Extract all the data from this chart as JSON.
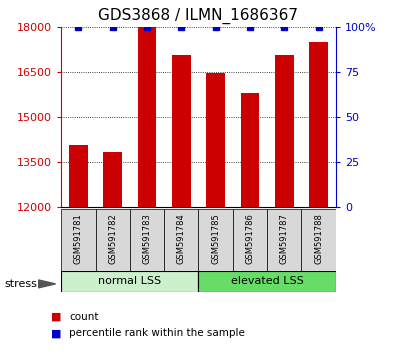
{
  "title": "GDS3868 / ILMN_1686367",
  "samples": [
    "GSM591781",
    "GSM591782",
    "GSM591783",
    "GSM591784",
    "GSM591785",
    "GSM591786",
    "GSM591787",
    "GSM591788"
  ],
  "counts": [
    14050,
    13820,
    18000,
    17050,
    16450,
    15800,
    17050,
    17500
  ],
  "percentile_ranks": [
    100,
    100,
    100,
    100,
    100,
    100,
    100,
    100
  ],
  "ylim_left": [
    12000,
    18000
  ],
  "ylim_right": [
    0,
    100
  ],
  "yticks_left": [
    12000,
    13500,
    15000,
    16500,
    18000
  ],
  "yticks_right": [
    0,
    25,
    50,
    75,
    100
  ],
  "bar_color": "#cc0000",
  "blue_color": "#0000cc",
  "bar_bottom": 12000,
  "group1_label": "normal LSS",
  "group2_label": "elevated LSS",
  "group1_indices": [
    0,
    1,
    2,
    3
  ],
  "group2_indices": [
    4,
    5,
    6,
    7
  ],
  "stress_label": "stress",
  "legend_count_label": "count",
  "legend_pct_label": "percentile rank within the sample",
  "bg_color_light": "#ccf0cc",
  "bg_color_dark": "#66dd66",
  "sample_bg_color": "#d8d8d8",
  "title_fontsize": 11,
  "tick_fontsize": 8,
  "label_fontsize": 8
}
